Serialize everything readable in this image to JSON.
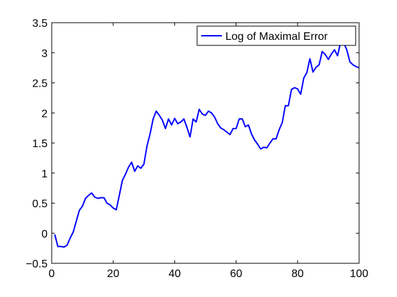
{
  "chart_data": {
    "type": "line",
    "title": "",
    "xlabel": "",
    "ylabel": "",
    "xlim": [
      0,
      100
    ],
    "ylim": [
      -0.5,
      3.5
    ],
    "x_ticks": [
      0,
      20,
      40,
      60,
      80,
      100
    ],
    "y_ticks": [
      -0.5,
      0,
      0.5,
      1,
      1.5,
      2,
      2.5,
      3,
      3.5
    ],
    "x_tick_labels": [
      "0",
      "20",
      "40",
      "60",
      "80",
      "100"
    ],
    "y_tick_labels": [
      "−0.5",
      "0",
      "0.5",
      "1",
      "1.5",
      "2",
      "2.5",
      "3",
      "3.5"
    ],
    "grid": false,
    "legend_position": "top-right",
    "series": [
      {
        "name": "Log of Maximal Error",
        "color": "#0000ff",
        "x": [
          1,
          2,
          3,
          4,
          5,
          6,
          7,
          8,
          9,
          10,
          11,
          12,
          13,
          14,
          15,
          16,
          17,
          18,
          19,
          20,
          21,
          22,
          23,
          24,
          25,
          26,
          27,
          28,
          29,
          30,
          31,
          32,
          33,
          34,
          35,
          36,
          37,
          38,
          39,
          40,
          41,
          42,
          43,
          44,
          45,
          46,
          47,
          48,
          49,
          50,
          51,
          52,
          53,
          54,
          55,
          56,
          57,
          58,
          59,
          60,
          61,
          62,
          63,
          64,
          65,
          66,
          67,
          68,
          69,
          70,
          71,
          72,
          73,
          74,
          75,
          76,
          77,
          78,
          79,
          80,
          81,
          82,
          83,
          84,
          85,
          86,
          87,
          88,
          89,
          90,
          91,
          92,
          93,
          94,
          95,
          96,
          97,
          98,
          99,
          100
        ],
        "y": [
          -0.02,
          -0.22,
          -0.22,
          -0.23,
          -0.2,
          -0.08,
          0.02,
          0.2,
          0.38,
          0.45,
          0.58,
          0.63,
          0.67,
          0.6,
          0.58,
          0.59,
          0.59,
          0.5,
          0.47,
          0.42,
          0.39,
          0.63,
          0.88,
          0.98,
          1.1,
          1.18,
          1.03,
          1.12,
          1.08,
          1.15,
          1.45,
          1.65,
          1.9,
          2.03,
          1.96,
          1.88,
          1.74,
          1.9,
          1.8,
          1.91,
          1.82,
          1.85,
          1.9,
          1.76,
          1.6,
          1.9,
          1.85,
          2.06,
          1.98,
          1.96,
          2.03,
          2.0,
          1.93,
          1.82,
          1.75,
          1.72,
          1.68,
          1.64,
          1.74,
          1.74,
          1.9,
          1.9,
          1.77,
          1.8,
          1.65,
          1.55,
          1.48,
          1.4,
          1.43,
          1.42,
          1.5,
          1.57,
          1.57,
          1.72,
          1.84,
          2.12,
          2.12,
          2.39,
          2.42,
          2.4,
          2.31,
          2.58,
          2.67,
          2.9,
          2.68,
          2.76,
          2.8,
          3.02,
          2.97,
          2.89,
          2.98,
          3.05,
          2.95,
          3.18,
          3.16,
          3.05,
          2.85,
          2.8,
          2.77,
          2.75
        ]
      }
    ]
  }
}
